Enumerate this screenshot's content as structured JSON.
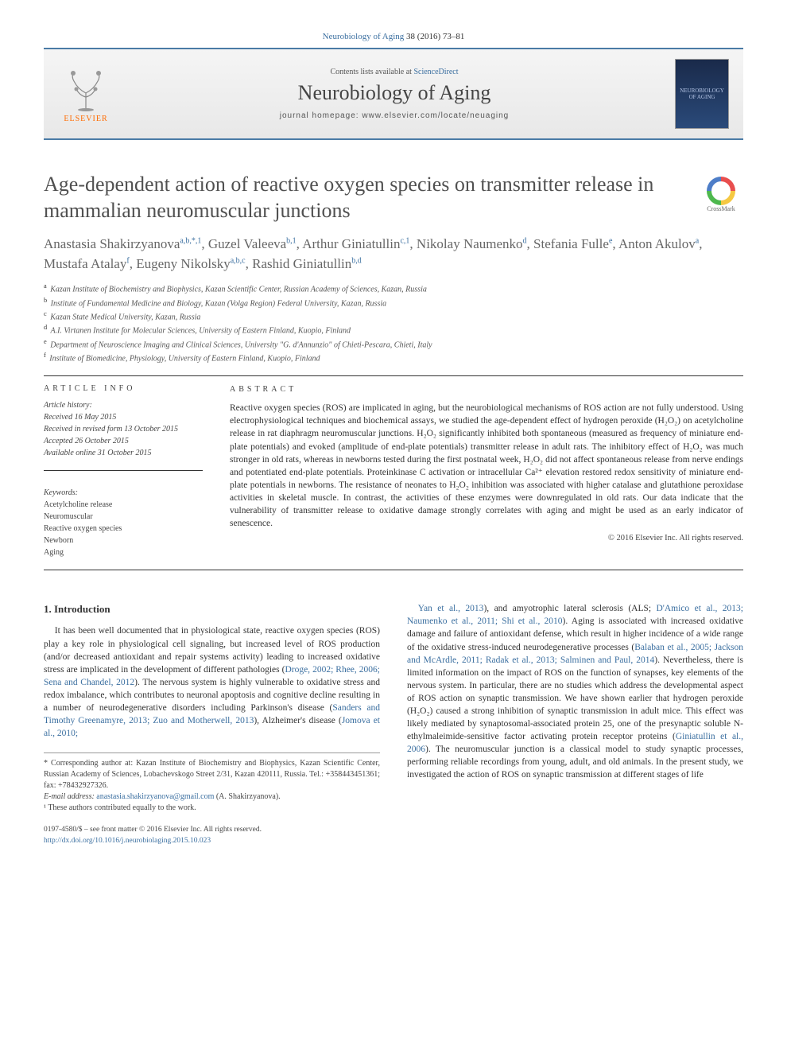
{
  "citation": {
    "journal_link": "Neurobiology of Aging",
    "ref": " 38 (2016) 73–81"
  },
  "header": {
    "publisher": "ELSEVIER",
    "contents_prefix": "Contents lists available at ",
    "contents_link": "ScienceDirect",
    "journal_name": "Neurobiology of Aging",
    "homepage_prefix": "journal homepage: ",
    "homepage_url": "www.elsevier.com/locate/neuaging",
    "cover_text": "NEUROBIOLOGY OF AGING"
  },
  "article": {
    "title": "Age-dependent action of reactive oxygen species on transmitter release in mammalian neuromuscular junctions",
    "crossmark": "CrossMark",
    "authors_html": "Anastasia Shakirzyanova<sup>a,b,*,1</sup>, Guzel Valeeva<sup>b,1</sup>, Arthur Giniatullin<sup>c,1</sup>, Nikolay Naumenko<sup>d</sup>, Stefania Fulle<sup>e</sup>, Anton Akulov<sup>a</sup>, Mustafa Atalay<sup>f</sup>, Eugeny Nikolsky<sup>a,b,c</sup>, Rashid Giniatullin<sup>b,d</sup>",
    "affiliations": [
      {
        "sup": "a",
        "text": "Kazan Institute of Biochemistry and Biophysics, Kazan Scientific Center, Russian Academy of Sciences, Kazan, Russia"
      },
      {
        "sup": "b",
        "text": "Institute of Fundamental Medicine and Biology, Kazan (Volga Region) Federal University, Kazan, Russia"
      },
      {
        "sup": "c",
        "text": "Kazan State Medical University, Kazan, Russia"
      },
      {
        "sup": "d",
        "text": "A.I. Virtanen Institute for Molecular Sciences, University of Eastern Finland, Kuopio, Finland"
      },
      {
        "sup": "e",
        "text": "Department of Neuroscience Imaging and Clinical Sciences, University \"G. d'Annunzio\" of Chieti-Pescara, Chieti, Italy"
      },
      {
        "sup": "f",
        "text": "Institute of Biomedicine, Physiology, University of Eastern Finland, Kuopio, Finland"
      }
    ]
  },
  "info": {
    "heading": "ARTICLE INFO",
    "history_label": "Article history:",
    "history": [
      "Received 16 May 2015",
      "Received in revised form 13 October 2015",
      "Accepted 26 October 2015",
      "Available online 31 October 2015"
    ],
    "keywords_label": "Keywords:",
    "keywords": [
      "Acetylcholine release",
      "Neuromuscular",
      "Reactive oxygen species",
      "Newborn",
      "Aging"
    ]
  },
  "abstract": {
    "heading": "ABSTRACT",
    "text": "Reactive oxygen species (ROS) are implicated in aging, but the neurobiological mechanisms of ROS action are not fully understood. Using electrophysiological techniques and biochemical assays, we studied the age-dependent effect of hydrogen peroxide (H₂O₂) on acetylcholine release in rat diaphragm neuromuscular junctions. H₂O₂ significantly inhibited both spontaneous (measured as frequency of miniature end-plate potentials) and evoked (amplitude of end-plate potentials) transmitter release in adult rats. The inhibitory effect of H₂O₂ was much stronger in old rats, whereas in newborns tested during the first postnatal week, H₂O₂ did not affect spontaneous release from nerve endings and potentiated end-plate potentials. Proteinkinase C activation or intracellular Ca²⁺ elevation restored redox sensitivity of miniature end-plate potentials in newborns. The resistance of neonates to H₂O₂ inhibition was associated with higher catalase and glutathione peroxidase activities in skeletal muscle. In contrast, the activities of these enzymes were downregulated in old rats. Our data indicate that the vulnerability of transmitter release to oxidative damage strongly correlates with aging and might be used as an early indicator of senescence.",
    "copyright": "© 2016 Elsevier Inc. All rights reserved."
  },
  "body": {
    "section_number": "1.",
    "section_title": "Introduction",
    "col1": "It has been well documented that in physiological state, reactive oxygen species (ROS) play a key role in physiological cell signaling, but increased level of ROS production (and/or decreased antioxidant and repair systems activity) leading to increased oxidative stress are implicated in the development of different pathologies (<a>Droge, 2002; Rhee, 2006; Sena and Chandel, 2012</a>). The nervous system is highly vulnerable to oxidative stress and redox imbalance, which contributes to neuronal apoptosis and cognitive decline resulting in a number of neurodegenerative disorders including Parkinson's disease (<a>Sanders and Timothy Greenamyre, 2013; Zuo and Motherwell, 2013</a>), Alzheimer's disease (<a>Jomova et al., 2010;</a>",
    "col2": "<a>Yan et al., 2013</a>), and amyotrophic lateral sclerosis (ALS; <a>D'Amico et al., 2013; Naumenko et al., 2011; Shi et al., 2010</a>). Aging is associated with increased oxidative damage and failure of antioxidant defense, which result in higher incidence of a wide range of the oxidative stress-induced neurodegenerative processes (<a>Balaban et al., 2005; Jackson and McArdle, 2011; Radak et al., 2013; Salminen and Paul, 2014</a>). Nevertheless, there is limited information on the impact of ROS on the function of synapses, key elements of the nervous system. In particular, there are no studies which address the developmental aspect of ROS action on synaptic transmission. We have shown earlier that hydrogen peroxide (H₂O₂) caused a strong inhibition of synaptic transmission in adult mice. This effect was likely mediated by synaptosomal-associated protein 25, one of the presynaptic soluble N-ethylmaleimide-sensitive factor activating protein receptor proteins (<a>Giniatullin et al., 2006</a>). The neuromuscular junction is a classical model to study synaptic processes, performing reliable recordings from young, adult, and old animals. In the present study, we investigated the action of ROS on synaptic transmission at different stages of life"
  },
  "footnotes": {
    "corr": "* Corresponding author at: Kazan Institute of Biochemistry and Biophysics, Kazan Scientific Center, Russian Academy of Sciences, Lobachevskogo Street 2/31, Kazan 420111, Russia. Tel.: +358443451361; fax: +78432927326.",
    "email_label": "E-mail address: ",
    "email": "anastasia.shakirzyanova@gmail.com",
    "email_name": " (A. Shakirzyanova).",
    "contrib": "¹ These authors contributed equally to the work."
  },
  "footer": {
    "line1": "0197-4580/$ – see front matter © 2016 Elsevier Inc. All rights reserved.",
    "doi": "http://dx.doi.org/10.1016/j.neurobiolaging.2015.10.023"
  },
  "colors": {
    "link": "#3b6fa0",
    "rule": "#4a7ba6",
    "orange": "#ff6b00"
  }
}
